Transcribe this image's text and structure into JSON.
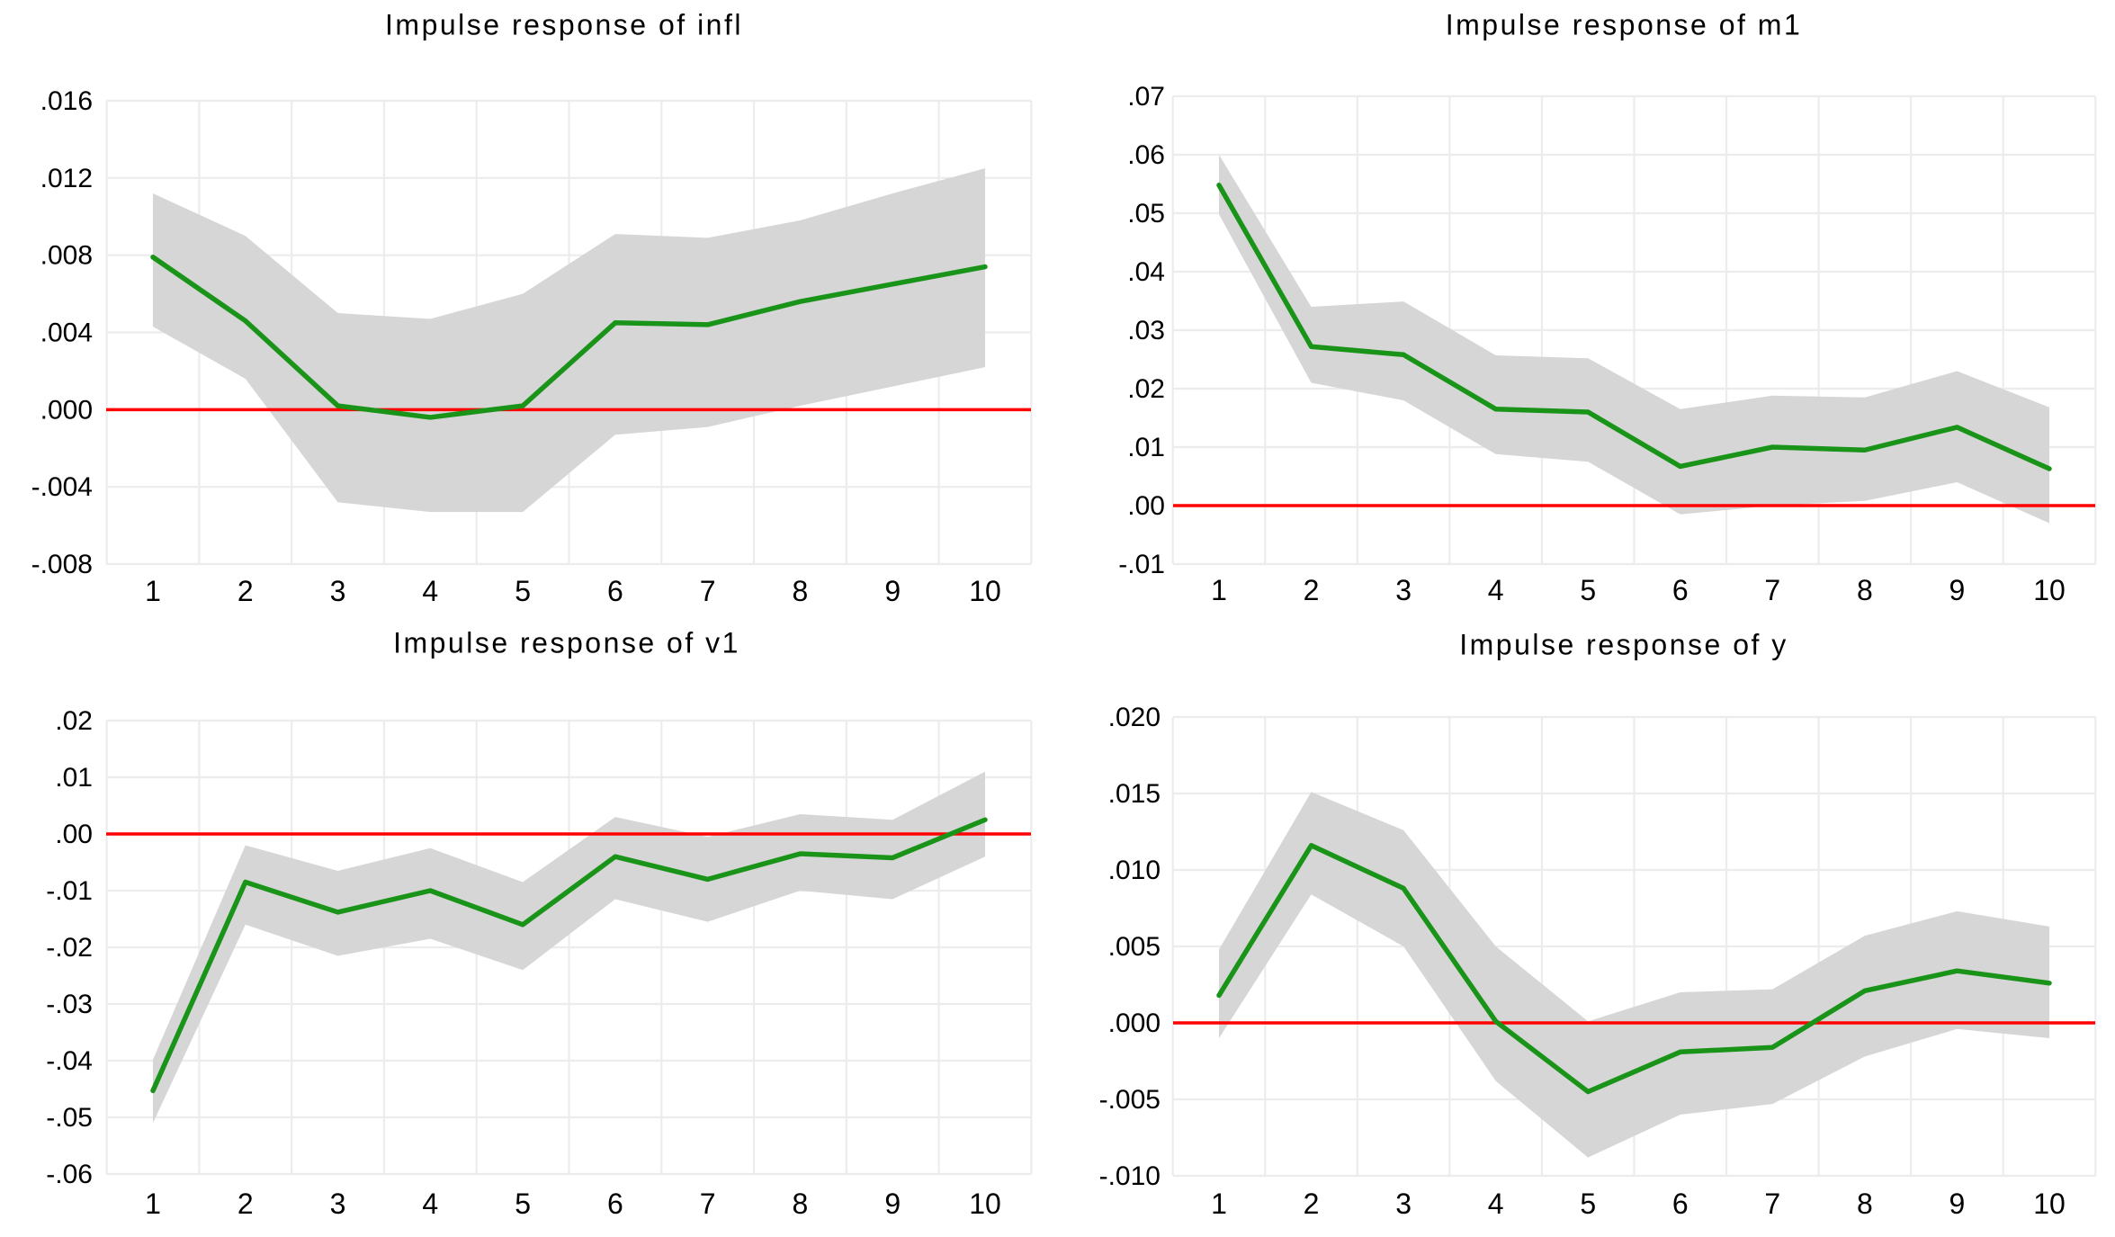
{
  "figure": {
    "kind": "impulse-response-panel",
    "background": "#ffffff"
  },
  "colors": {
    "irf_line": "#199419",
    "zero_line": "#ff0000",
    "confidence_band": "#d6d6d6",
    "gridline": "#ececec",
    "text": "#000000"
  },
  "chart_data": [
    {
      "type": "line",
      "title": "Impulse response of infl",
      "x": [
        1,
        2,
        3,
        4,
        5,
        6,
        7,
        8,
        9,
        10
      ],
      "x_tick_labels": [
        "1",
        "2",
        "3",
        "4",
        "5",
        "6",
        "7",
        "8",
        "9",
        "10"
      ],
      "y_tick_labels": [
        ".016",
        ".012",
        ".008",
        ".004",
        ".000",
        "-.004",
        "-.008"
      ],
      "y_tick_values": [
        0.016,
        0.012,
        0.008,
        0.004,
        0.0,
        -0.004,
        -0.008
      ],
      "ylim": [
        -0.008,
        0.016
      ],
      "grid": true,
      "legend": "none",
      "zero_line": 0,
      "series": [
        {
          "name": "irf",
          "values": [
            0.0079,
            0.0046,
            0.0002,
            -0.0004,
            0.0002,
            0.0045,
            0.0044,
            0.0056,
            0.0065,
            0.0074
          ]
        },
        {
          "name": "ci_upper",
          "values": [
            0.0112,
            0.009,
            0.005,
            0.0047,
            0.006,
            0.0091,
            0.0089,
            0.0098,
            0.0112,
            0.0125
          ]
        },
        {
          "name": "ci_lower",
          "values": [
            0.0043,
            0.0016,
            -0.0048,
            -0.0053,
            -0.0053,
            -0.0013,
            -0.0009,
            0.0002,
            0.0012,
            0.0022
          ]
        }
      ]
    },
    {
      "type": "line",
      "title": "Impulse response of m1",
      "x": [
        1,
        2,
        3,
        4,
        5,
        6,
        7,
        8,
        9,
        10
      ],
      "x_tick_labels": [
        "1",
        "2",
        "3",
        "4",
        "5",
        "6",
        "7",
        "8",
        "9",
        "10"
      ],
      "y_tick_labels": [
        ".07",
        ".06",
        ".05",
        ".04",
        ".03",
        ".02",
        ".01",
        ".00",
        "-.01"
      ],
      "y_tick_values": [
        0.07,
        0.06,
        0.05,
        0.04,
        0.03,
        0.02,
        0.01,
        0.0,
        -0.01
      ],
      "ylim": [
        -0.01,
        0.07
      ],
      "grid": true,
      "legend": "none",
      "zero_line": 0,
      "series": [
        {
          "name": "irf",
          "values": [
            0.0548,
            0.0272,
            0.0258,
            0.0165,
            0.016,
            0.0067,
            0.01,
            0.0095,
            0.0134,
            0.0063
          ]
        },
        {
          "name": "ci_upper",
          "values": [
            0.06,
            0.034,
            0.0349,
            0.0257,
            0.0252,
            0.0165,
            0.0188,
            0.0185,
            0.023,
            0.0168
          ]
        },
        {
          "name": "ci_lower",
          "values": [
            0.0498,
            0.021,
            0.018,
            0.0088,
            0.0075,
            -0.0015,
            0.0,
            0.0008,
            0.004,
            -0.003
          ]
        }
      ]
    },
    {
      "type": "line",
      "title": "Impulse response of v1",
      "x": [
        1,
        2,
        3,
        4,
        5,
        6,
        7,
        8,
        9,
        10
      ],
      "x_tick_labels": [
        "1",
        "2",
        "3",
        "4",
        "5",
        "6",
        "7",
        "8",
        "9",
        "10"
      ],
      "y_tick_labels": [
        ".02",
        ".01",
        ".00",
        "-.01",
        "-.02",
        "-.03",
        "-.04",
        "-.05",
        "-.06"
      ],
      "y_tick_values": [
        0.02,
        0.01,
        0.0,
        -0.01,
        -0.02,
        -0.03,
        -0.04,
        -0.05,
        -0.06
      ],
      "ylim": [
        -0.06,
        0.02
      ],
      "grid": true,
      "legend": "none",
      "zero_line": 0,
      "series": [
        {
          "name": "irf",
          "values": [
            -0.0453,
            -0.0085,
            -0.0138,
            -0.01,
            -0.016,
            -0.004,
            -0.008,
            -0.0035,
            -0.0042,
            0.0025
          ]
        },
        {
          "name": "ci_upper",
          "values": [
            -0.0398,
            -0.002,
            -0.0065,
            -0.0025,
            -0.0085,
            0.003,
            -0.0005,
            0.0035,
            0.0025,
            0.011
          ]
        },
        {
          "name": "ci_lower",
          "values": [
            -0.051,
            -0.016,
            -0.0215,
            -0.0185,
            -0.024,
            -0.0115,
            -0.0155,
            -0.01,
            -0.0115,
            -0.004
          ]
        }
      ]
    },
    {
      "type": "line",
      "title": "Impulse response of y",
      "x": [
        1,
        2,
        3,
        4,
        5,
        6,
        7,
        8,
        9,
        10
      ],
      "x_tick_labels": [
        "1",
        "2",
        "3",
        "4",
        "5",
        "6",
        "7",
        "8",
        "9",
        "10"
      ],
      "y_tick_labels": [
        ".020",
        ".015",
        ".010",
        ".005",
        ".000",
        "-.005",
        "-.010"
      ],
      "y_tick_values": [
        0.02,
        0.015,
        0.01,
        0.005,
        0.0,
        -0.005,
        -0.01
      ],
      "ylim": [
        -0.01,
        0.02
      ],
      "grid": true,
      "legend": "none",
      "zero_line": 0,
      "series": [
        {
          "name": "irf",
          "values": [
            0.0018,
            0.0116,
            0.0088,
            0.0001,
            -0.0045,
            -0.0019,
            -0.0016,
            0.0021,
            0.0034,
            0.0026
          ]
        },
        {
          "name": "ci_upper",
          "values": [
            0.0048,
            0.0151,
            0.0126,
            0.005,
            0.0001,
            0.002,
            0.0022,
            0.0057,
            0.0073,
            0.0063
          ]
        },
        {
          "name": "ci_lower",
          "values": [
            -0.001,
            0.0084,
            0.005,
            -0.0038,
            -0.0088,
            -0.006,
            -0.0053,
            -0.0022,
            -0.0004,
            -0.001
          ]
        }
      ]
    }
  ]
}
